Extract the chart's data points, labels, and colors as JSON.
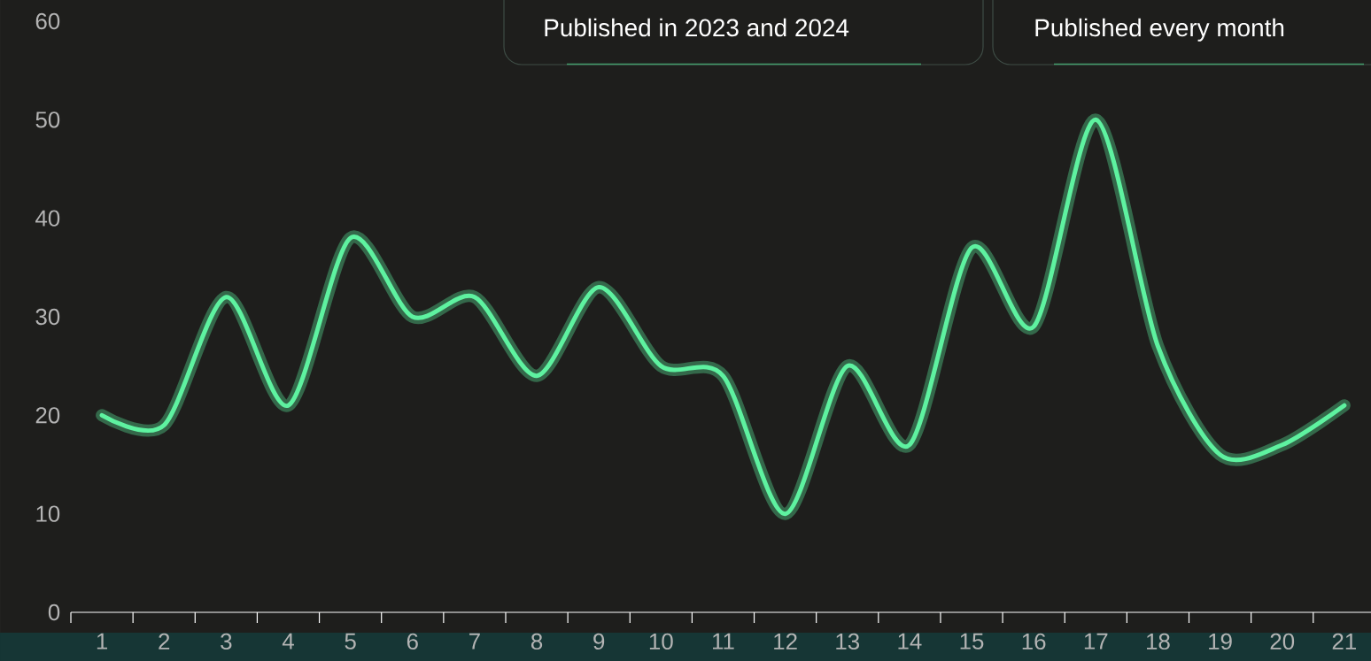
{
  "chart_data": {
    "type": "line",
    "categories": [
      "1",
      "2",
      "3",
      "4",
      "5",
      "6",
      "7",
      "8",
      "9",
      "10",
      "11",
      "12",
      "13",
      "14",
      "15",
      "16",
      "17",
      "18",
      "19",
      "20",
      "21"
    ],
    "values": [
      20,
      19,
      32,
      21,
      38,
      30,
      32,
      24,
      33,
      25,
      24,
      10,
      25,
      17,
      37,
      29,
      50,
      27,
      16,
      17,
      21
    ],
    "color": "#5ef2a0",
    "ylim": [
      0,
      60
    ],
    "yticks": [
      0,
      10,
      20,
      30,
      40,
      50,
      60
    ],
    "marker": "none",
    "line_style": "solid",
    "annotations": [
      "Published in 2023 and 2024",
      "Published every month"
    ]
  }
}
